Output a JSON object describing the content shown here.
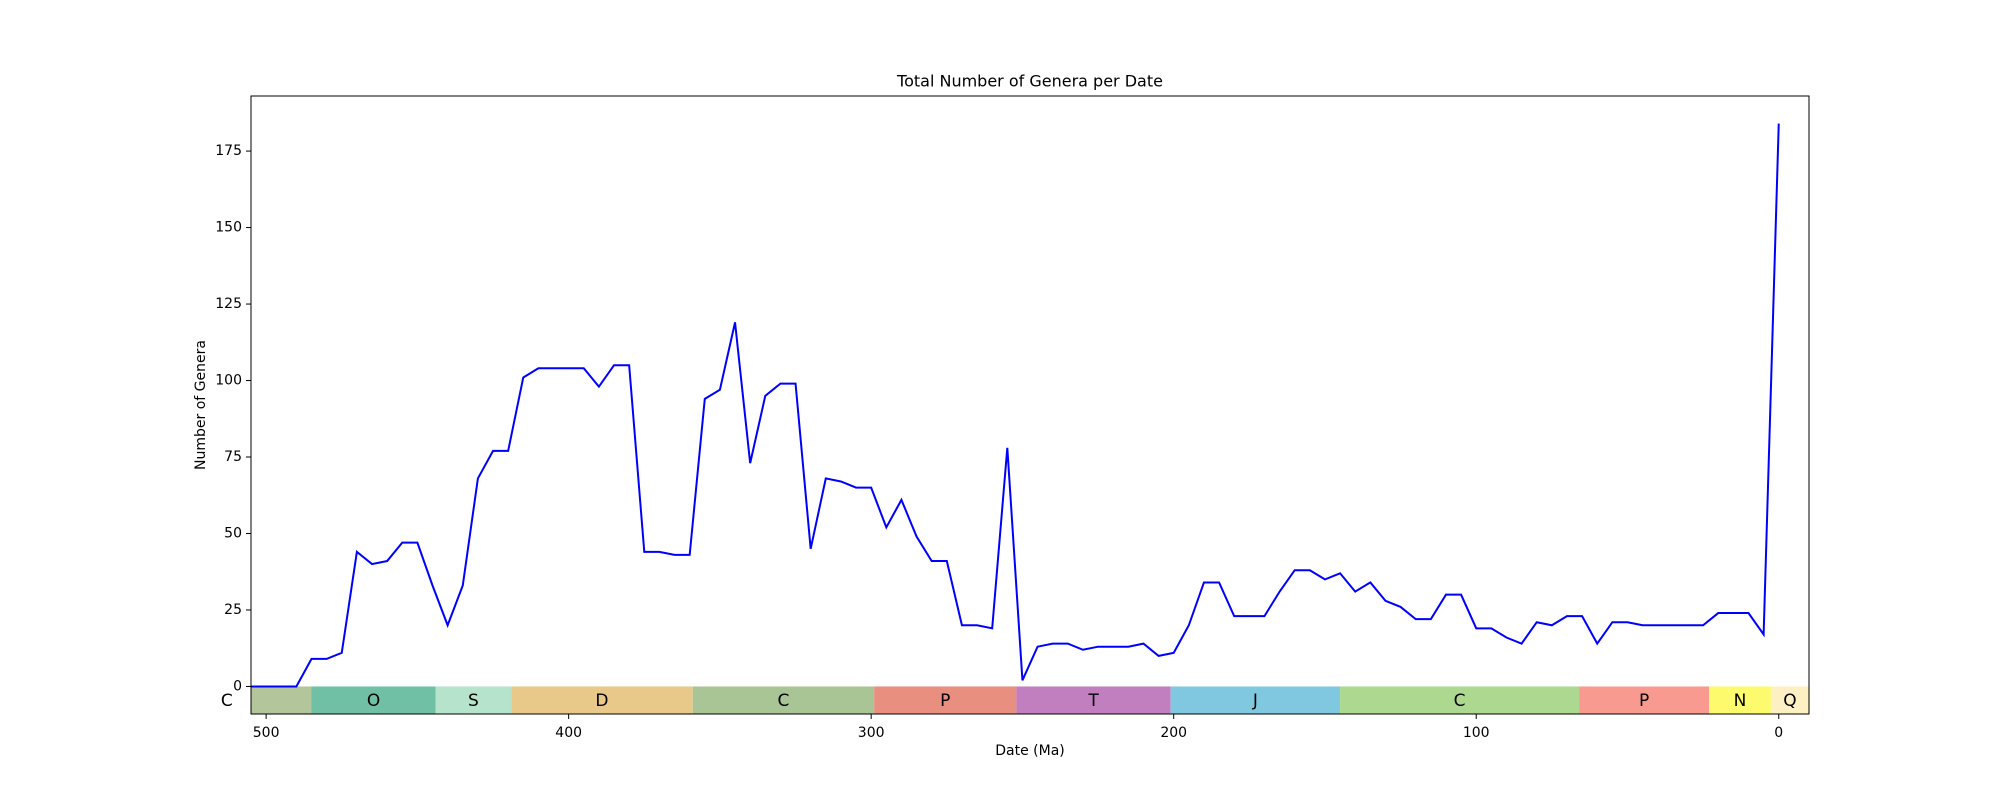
{
  "chart_data": {
    "type": "line",
    "title": "Total Number of Genera per Date",
    "x_label": "Date (Ma)",
    "y_label": "Number of Genera",
    "x": [
      505,
      500,
      495,
      490,
      485,
      480,
      475,
      470,
      465,
      460,
      455,
      450,
      445,
      440,
      435,
      430,
      425,
      420,
      415,
      410,
      405,
      400,
      395,
      390,
      385,
      380,
      375,
      370,
      365,
      360,
      355,
      350,
      345,
      340,
      335,
      330,
      325,
      320,
      315,
      310,
      305,
      300,
      295,
      290,
      285,
      280,
      275,
      270,
      265,
      260,
      255,
      250,
      245,
      240,
      235,
      230,
      225,
      220,
      215,
      210,
      205,
      200,
      195,
      190,
      185,
      180,
      175,
      170,
      165,
      160,
      155,
      150,
      145,
      140,
      135,
      130,
      125,
      120,
      115,
      110,
      105,
      100,
      95,
      90,
      85,
      80,
      75,
      70,
      65,
      60,
      55,
      50,
      45,
      40,
      35,
      30,
      25,
      20,
      15,
      10,
      5,
      0
    ],
    "series": [
      {
        "color": "#0000ff",
        "values": [
          0,
          0,
          0,
          0,
          9,
          9,
          11,
          44,
          40,
          41,
          47,
          47,
          33,
          20,
          33,
          68,
          77,
          77,
          101,
          104,
          104,
          104,
          104,
          98,
          105,
          105,
          44,
          44,
          43,
          43,
          94,
          97,
          119,
          73,
          95,
          99,
          99,
          45,
          68,
          67,
          65,
          65,
          52,
          61,
          49,
          41,
          41,
          20,
          20,
          19,
          78,
          2,
          13,
          14,
          14,
          12,
          13,
          13,
          13,
          14,
          10,
          11,
          20,
          34,
          34,
          23,
          23,
          23,
          31,
          38,
          38,
          35,
          37,
          31,
          34,
          28,
          26,
          22,
          22,
          30,
          30,
          19,
          19,
          16,
          14,
          21,
          20,
          23,
          23,
          14,
          21,
          21,
          20,
          20,
          20,
          20,
          20,
          24,
          24,
          24,
          17,
          184
        ]
      }
    ],
    "periods": [
      {
        "label": "C",
        "start": 541,
        "end": 485,
        "color": "#b3c59b"
      },
      {
        "label": "O",
        "start": 485,
        "end": 444,
        "color": "#6fc0a5"
      },
      {
        "label": "S",
        "start": 444,
        "end": 419,
        "color": "#b6e3cb"
      },
      {
        "label": "D",
        "start": 419,
        "end": 359,
        "color": "#e8c98a"
      },
      {
        "label": "C",
        "start": 359,
        "end": 299,
        "color": "#a9c495"
      },
      {
        "label": "P",
        "start": 299,
        "end": 252,
        "color": "#e88f80"
      },
      {
        "label": "T",
        "start": 252,
        "end": 201,
        "color": "#c17fbf"
      },
      {
        "label": "J",
        "start": 201,
        "end": 145,
        "color": "#80c8e0"
      },
      {
        "label": "C",
        "start": 145,
        "end": 66,
        "color": "#acd98f"
      },
      {
        "label": "P",
        "start": 66,
        "end": 23,
        "color": "#f89a8f"
      },
      {
        "label": "N",
        "start": 23,
        "end": 2.6,
        "color": "#fdfb6d"
      },
      {
        "label": "Q",
        "start": 2.6,
        "end": -10,
        "color": "#fdf0c2"
      }
    ],
    "xlim": [
      505,
      -10
    ],
    "ylim": [
      -9,
      193
    ],
    "xticks": [
      500,
      400,
      300,
      200,
      100,
      0
    ],
    "yticks": [
      0,
      25,
      50,
      75,
      100,
      125,
      150,
      175
    ]
  }
}
